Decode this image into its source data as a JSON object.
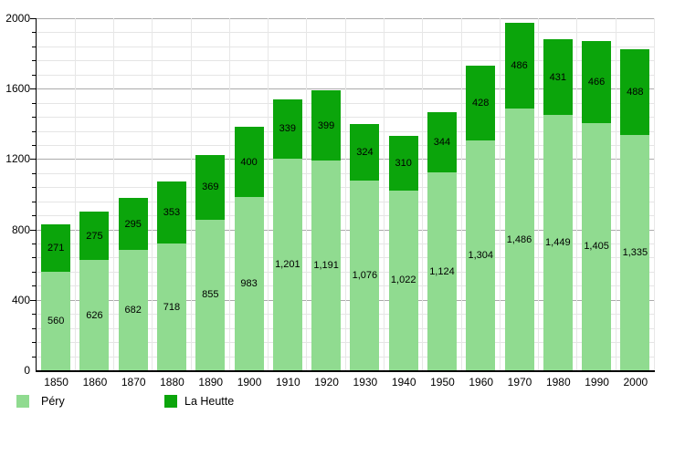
{
  "chart_data": {
    "type": "bar",
    "stacked": true,
    "title": "",
    "xlabel": "",
    "ylabel": "",
    "categories": [
      "1850",
      "1860",
      "1870",
      "1880",
      "1890",
      "1900",
      "1910",
      "1920",
      "1930",
      "1940",
      "1950",
      "1960",
      "1970",
      "1980",
      "1990",
      "2000"
    ],
    "series": [
      {
        "name": "Péry",
        "color": "#90DB90",
        "values": [
          560,
          626,
          682,
          718,
          855,
          983,
          1201,
          1191,
          1076,
          1022,
          1124,
          1304,
          1486,
          1449,
          1405,
          1335
        ]
      },
      {
        "name": "La Heutte",
        "color": "#0BA50B",
        "values": [
          271,
          275,
          295,
          353,
          369,
          400,
          339,
          399,
          324,
          310,
          344,
          428,
          486,
          431,
          466,
          488
        ]
      }
    ],
    "ylim": [
      0,
      2000
    ],
    "y_major_ticks": [
      0,
      400,
      800,
      1200,
      1600,
      2000
    ],
    "y_major_tick_labels": [
      "0",
      "400",
      "800",
      "1200",
      "1600",
      "2000"
    ],
    "y_minor_step": 80,
    "grid": true,
    "legend_position": "bottom-left",
    "value_labels_shown": true,
    "colors": {
      "background": "#ffffff",
      "axis": "#000000",
      "major_grid": "#ababab",
      "minor_grid": "#e5e5e5",
      "label_text": "#000000"
    }
  },
  "legend": {
    "items": [
      {
        "label": "Péry",
        "color": "#90DB90"
      },
      {
        "label": "La Heutte",
        "color": "#0BA50B"
      }
    ]
  }
}
